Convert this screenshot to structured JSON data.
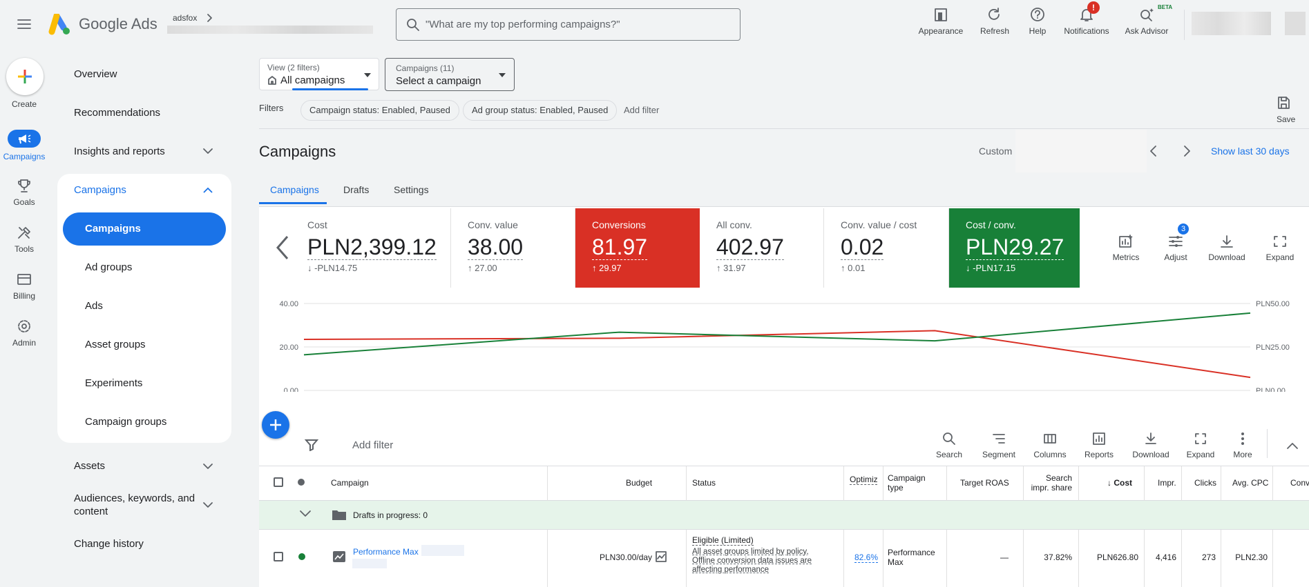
{
  "header": {
    "brand": "Google Ads",
    "account_label": "adsfox",
    "search_placeholder": "\"What are my top performing campaigns?\"",
    "actions": [
      {
        "label": "Appearance",
        "icon": "appearance-icon"
      },
      {
        "label": "Refresh",
        "icon": "refresh-icon"
      },
      {
        "label": "Help",
        "icon": "help-icon"
      },
      {
        "label": "Notifications",
        "icon": "bell-icon",
        "badge": "!"
      },
      {
        "label": "Ask Advisor",
        "icon": "advisor-icon",
        "badge": "BETA"
      }
    ]
  },
  "rail": {
    "create": "Create",
    "items": [
      {
        "label": "Campaigns",
        "icon": "megaphone-icon",
        "active": true
      },
      {
        "label": "Goals",
        "icon": "trophy-icon"
      },
      {
        "label": "Tools",
        "icon": "tools-icon"
      },
      {
        "label": "Billing",
        "icon": "credit-card-icon"
      },
      {
        "label": "Admin",
        "icon": "gear-icon"
      }
    ]
  },
  "nav": {
    "overview": "Overview",
    "recommendations": "Recommendations",
    "insights": "Insights and reports",
    "campaigns": "Campaigns",
    "sub": [
      "Campaigns",
      "Ad groups",
      "Ads",
      "Asset groups",
      "Experiments",
      "Campaign groups"
    ],
    "assets": "Assets",
    "audiences": "Audiences, keywords, and content",
    "change_history": "Change history"
  },
  "view": {
    "view_label": "View (2 filters)",
    "view_value": "All campaigns",
    "campaigns_label": "Campaigns (11)",
    "campaigns_value": "Select a campaign",
    "filters_label": "Filters",
    "chips": [
      "Campaign status: Enabled, Paused",
      "Ad group status: Enabled, Paused"
    ],
    "add_filter": "Add filter",
    "save": "Save"
  },
  "page": {
    "title": "Campaigns",
    "date_range_label": "Custom",
    "show_last": "Show last 30 days",
    "tabs": [
      "Campaigns",
      "Drafts",
      "Settings"
    ]
  },
  "metrics": [
    {
      "title": "Cost",
      "value": "PLN2,399.12",
      "delta": "-PLN14.75",
      "dir": "down"
    },
    {
      "title": "Conv. value",
      "value": "38.00",
      "delta": "27.00",
      "dir": "up"
    },
    {
      "title": "Conversions",
      "value": "81.97",
      "delta": "29.97",
      "dir": "up"
    },
    {
      "title": "All conv.",
      "value": "402.97",
      "delta": "31.97",
      "dir": "up"
    },
    {
      "title": "Conv. value / cost",
      "value": "0.02",
      "delta": "0.01",
      "dir": "up"
    },
    {
      "title": "Cost / conv.",
      "value": "PLN29.27",
      "delta": "-PLN17.15",
      "dir": "down"
    }
  ],
  "metric_actions": [
    {
      "label": "Metrics",
      "icon": "metrics-icon"
    },
    {
      "label": "Adjust",
      "icon": "adjust-icon",
      "badge": "3"
    },
    {
      "label": "Download",
      "icon": "download-icon"
    },
    {
      "label": "Expand",
      "icon": "expand-icon"
    }
  ],
  "chart_data": {
    "type": "line",
    "y_left_ticks": [
      "40.00",
      "20.00",
      "0.00"
    ],
    "y_right_ticks": [
      "PLN50.00",
      "PLN25.00",
      "PLN0.00"
    ],
    "y_left_range": [
      0,
      40
    ],
    "y_right_range": [
      0,
      50
    ],
    "x": [
      0,
      1,
      2,
      3
    ],
    "series": [
      {
        "color": "#d93025",
        "axis": "left",
        "values": [
          23.5,
          24,
          27.5,
          6
        ]
      },
      {
        "color": "#188038",
        "axis": "right",
        "values": [
          20.5,
          33.5,
          28.5,
          44.5
        ]
      }
    ]
  },
  "table": {
    "add_filter": "Add filter",
    "toolbar": [
      {
        "label": "Search",
        "icon": "search-icon"
      },
      {
        "label": "Segment",
        "icon": "segment-icon"
      },
      {
        "label": "Columns",
        "icon": "columns-icon"
      },
      {
        "label": "Reports",
        "icon": "reports-icon"
      },
      {
        "label": "Download",
        "icon": "download-icon"
      },
      {
        "label": "Expand",
        "icon": "expand-icon"
      },
      {
        "label": "More",
        "icon": "more-icon"
      }
    ],
    "headers": {
      "campaign": "Campaign",
      "budget": "Budget",
      "status": "Status",
      "optimization": "Optimiz",
      "campaign_type": "Campaign type",
      "target_roas": "Target ROAS",
      "search_share": "Search impr. share",
      "cost": "Cost",
      "impr": "Impr.",
      "clicks": "Clicks",
      "avg_cpc": "Avg. CPC",
      "conv": "Conv"
    },
    "drafts_row": "Drafts in progress: 0",
    "row": {
      "campaign": "Performance Max",
      "budget": "PLN30.00/day",
      "status_title": "Eligible (Limited)",
      "status_detail": "All asset groups limited by policy, Offline conversion data issues are affecting performance",
      "optimization": "82.6%",
      "campaign_type": "Performance Max",
      "target_roas": "—",
      "search_share": "37.82%",
      "cost": "PLN626.80",
      "impr": "4,416",
      "clicks": "273",
      "avg_cpc": "PLN2.30"
    }
  }
}
